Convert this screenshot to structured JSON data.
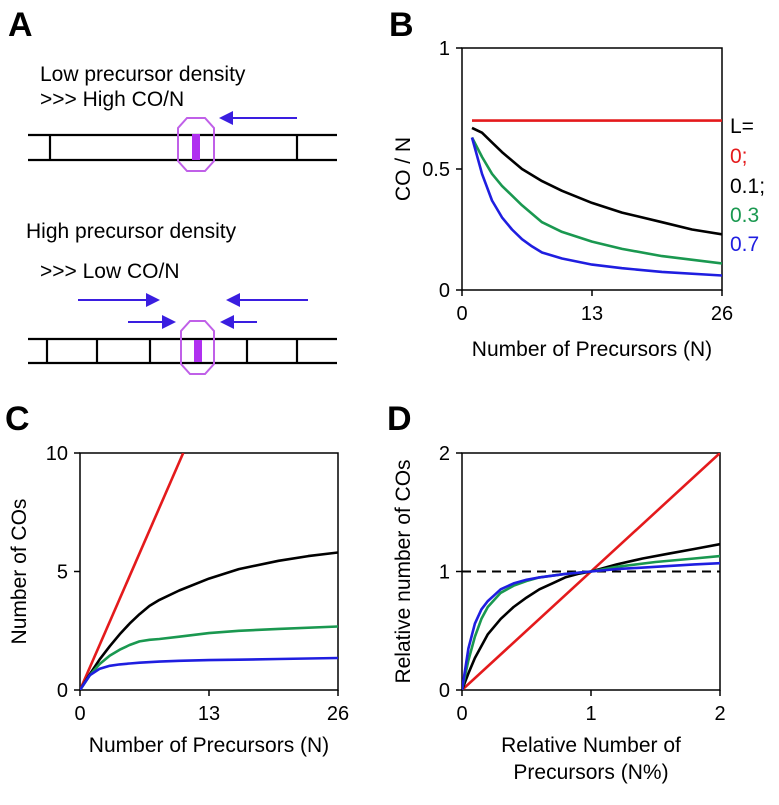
{
  "panel_a": {
    "letter": "A",
    "low_title": "Low precursor density",
    "low_subtitle": ">>> High CO/N",
    "high_title": "High precursor density",
    "high_subtitle": ">>> Low CO/N"
  },
  "colors": {
    "L0": "#e41a1c",
    "L01": "#000000",
    "L03": "#1a9850",
    "L07": "#1f1ee0",
    "arrow": "#3a1ee0",
    "co_site": "#b030f0",
    "co_box": "#c060e8"
  },
  "chart_data": [
    {
      "panel": "B",
      "type": "line",
      "xlabel": "Number of Precursors (N)",
      "ylabel": "CO / N",
      "xticks": [
        "0",
        "13",
        "26"
      ],
      "yticks": [
        "0",
        "0.5",
        "1"
      ],
      "xlim": [
        0,
        26
      ],
      "ylim": [
        0,
        1
      ],
      "legend_title": "L=",
      "series": [
        {
          "name": "0;",
          "color": "#e41a1c",
          "x": [
            1,
            3,
            6,
            10,
            15,
            20,
            26
          ],
          "y": [
            0.7,
            0.7,
            0.7,
            0.7,
            0.7,
            0.7,
            0.7
          ]
        },
        {
          "name": "0.1;",
          "color": "#000000",
          "x": [
            1,
            2,
            3,
            4,
            6,
            8,
            10,
            13,
            16,
            20,
            23,
            26
          ],
          "y": [
            0.67,
            0.65,
            0.61,
            0.57,
            0.5,
            0.45,
            0.41,
            0.36,
            0.32,
            0.28,
            0.25,
            0.23
          ]
        },
        {
          "name": "0.3",
          "color": "#1a9850",
          "x": [
            1,
            2,
            3,
            4,
            5,
            6,
            8,
            10,
            13,
            16,
            20,
            26
          ],
          "y": [
            0.63,
            0.55,
            0.48,
            0.43,
            0.39,
            0.35,
            0.28,
            0.24,
            0.2,
            0.17,
            0.14,
            0.11
          ]
        },
        {
          "name": "0.7",
          "color": "#1f1ee0",
          "x": [
            1,
            2,
            3,
            4,
            5,
            6,
            7,
            8,
            10,
            13,
            16,
            20,
            26
          ],
          "y": [
            0.63,
            0.48,
            0.37,
            0.3,
            0.25,
            0.21,
            0.18,
            0.155,
            0.13,
            0.105,
            0.09,
            0.075,
            0.06
          ]
        }
      ]
    },
    {
      "panel": "C",
      "type": "line",
      "xlabel": "Number of Precursors (N)",
      "ylabel": "Number of COs",
      "xticks": [
        "0",
        "13",
        "26"
      ],
      "yticks": [
        "0",
        "5",
        "10"
      ],
      "xlim": [
        0,
        26
      ],
      "ylim": [
        0,
        10
      ],
      "series": [
        {
          "color": "#e41a1c",
          "x": [
            0,
            10.4
          ],
          "y": [
            0,
            10
          ]
        },
        {
          "color": "#000000",
          "x": [
            0,
            1,
            2,
            3,
            4,
            5,
            6,
            7,
            8,
            10,
            13,
            16,
            20,
            23,
            26
          ],
          "y": [
            0,
            0.67,
            1.3,
            1.85,
            2.35,
            2.8,
            3.2,
            3.55,
            3.8,
            4.2,
            4.7,
            5.1,
            5.45,
            5.65,
            5.8
          ]
        },
        {
          "color": "#1a9850",
          "x": [
            0,
            1,
            2,
            3,
            4,
            5,
            6,
            7,
            8,
            10,
            13,
            16,
            20,
            26
          ],
          "y": [
            0,
            0.63,
            1.1,
            1.45,
            1.7,
            1.9,
            2.05,
            2.12,
            2.15,
            2.25,
            2.4,
            2.5,
            2.58,
            2.68
          ]
        },
        {
          "color": "#1f1ee0",
          "x": [
            0,
            1,
            2,
            3,
            4,
            5,
            6,
            8,
            10,
            13,
            16,
            20,
            26
          ],
          "y": [
            0,
            0.63,
            0.9,
            1.02,
            1.08,
            1.12,
            1.15,
            1.2,
            1.23,
            1.26,
            1.28,
            1.31,
            1.35
          ]
        }
      ]
    },
    {
      "panel": "D",
      "type": "line",
      "xlabel_line1": "Relative Number of",
      "xlabel_line2": "Precursors (N%)",
      "ylabel": "Relative number of COs",
      "xticks": [
        "0",
        "1",
        "2"
      ],
      "yticks": [
        "0",
        "1",
        "2"
      ],
      "xlim": [
        0,
        2
      ],
      "ylim": [
        0,
        2
      ],
      "reference_line_y": 1,
      "series": [
        {
          "color": "#e41a1c",
          "x": [
            0,
            2
          ],
          "y": [
            0,
            2
          ]
        },
        {
          "color": "#000000",
          "x": [
            0,
            0.05,
            0.1,
            0.2,
            0.3,
            0.4,
            0.5,
            0.6,
            0.7,
            0.8,
            0.9,
            1.0,
            1.2,
            1.4,
            1.6,
            1.8,
            2.0
          ],
          "y": [
            0,
            0.14,
            0.27,
            0.47,
            0.6,
            0.7,
            0.78,
            0.85,
            0.9,
            0.95,
            0.98,
            1.0,
            1.06,
            1.11,
            1.15,
            1.19,
            1.23
          ]
        },
        {
          "color": "#1a9850",
          "x": [
            0,
            0.05,
            0.1,
            0.15,
            0.2,
            0.3,
            0.4,
            0.5,
            0.6,
            0.8,
            1.0,
            1.2,
            1.5,
            1.8,
            2.0
          ],
          "y": [
            0,
            0.25,
            0.45,
            0.6,
            0.7,
            0.82,
            0.88,
            0.92,
            0.95,
            0.98,
            1.0,
            1.04,
            1.08,
            1.11,
            1.13
          ]
        },
        {
          "color": "#1f1ee0",
          "x": [
            0,
            0.05,
            0.1,
            0.15,
            0.2,
            0.25,
            0.3,
            0.4,
            0.5,
            0.6,
            0.8,
            1.0,
            1.2,
            1.5,
            1.8,
            2.0
          ],
          "y": [
            0,
            0.35,
            0.56,
            0.68,
            0.75,
            0.8,
            0.85,
            0.9,
            0.93,
            0.95,
            0.98,
            1.0,
            1.02,
            1.04,
            1.06,
            1.07
          ]
        }
      ]
    }
  ]
}
